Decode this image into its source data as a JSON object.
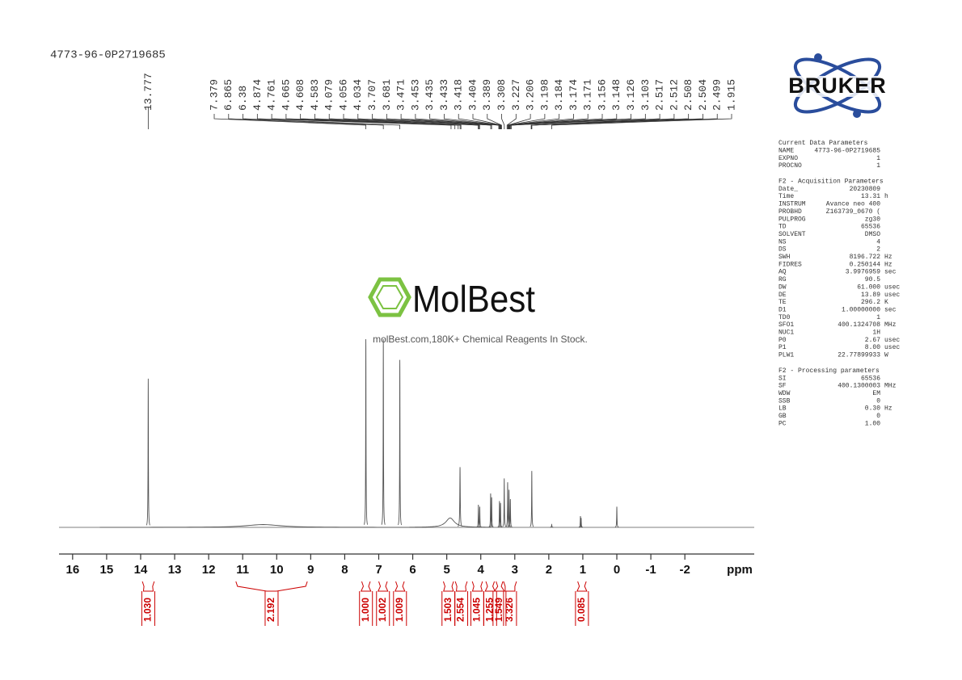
{
  "sample_id": "4773-96-0P2719685",
  "logo": "BRUKER",
  "watermark": {
    "brand": "MolBest",
    "tagline": "molBest.com,180K+ Chemical Reagents In Stock."
  },
  "chart_data": {
    "type": "nmr",
    "x_label": "ppm",
    "xlim": [
      16.4,
      -4.04
    ],
    "xticks": [
      16,
      15,
      14,
      13,
      12,
      11,
      10,
      9,
      8,
      7,
      6,
      5,
      4,
      3,
      2,
      1,
      0,
      -1,
      -2
    ],
    "line_color": "#555555",
    "peaks": {
      "x": [
        13.777,
        10.4,
        7.379,
        6.865,
        6.38,
        4.9,
        4.61,
        4.07,
        4.03,
        3.71,
        3.68,
        3.45,
        3.42,
        3.31,
        3.21,
        3.17,
        3.13,
        2.5,
        1.915,
        1.07,
        1.05,
        0.0
      ],
      "values": [
        79,
        1.5,
        100,
        100,
        89,
        5,
        32,
        12,
        11,
        18,
        16,
        14,
        13,
        26,
        24,
        20,
        15,
        30,
        1.5,
        6,
        5,
        11
      ],
      "widths": [
        0.006,
        0.6,
        0.006,
        0.006,
        0.006,
        0.15,
        0.008,
        0.006,
        0.006,
        0.006,
        0.006,
        0.006,
        0.006,
        0.006,
        0.006,
        0.006,
        0.006,
        0.006,
        0.006,
        0.006,
        0.006,
        0.006
      ]
    },
    "peak_labels": [
      13.777,
      7.379,
      6.865,
      6.38,
      4.874,
      4.761,
      4.665,
      4.608,
      4.583,
      4.079,
      4.056,
      4.034,
      3.707,
      3.681,
      3.471,
      3.453,
      3.435,
      3.433,
      3.418,
      3.404,
      3.389,
      3.308,
      3.227,
      3.206,
      3.198,
      3.184,
      3.174,
      3.171,
      3.156,
      3.148,
      3.126,
      3.103,
      2.517,
      2.512,
      2.508,
      2.504,
      2.499,
      1.915
    ],
    "integrals": {
      "color": "#cc0000",
      "from": [
        13.95,
        11.2,
        7.5,
        7.0,
        6.5,
        5.1,
        4.75,
        4.25,
        3.85,
        3.55,
        3.33,
        1.15
      ],
      "to": [
        13.6,
        9.1,
        7.25,
        6.75,
        6.25,
        4.8,
        4.4,
        3.95,
        3.6,
        3.35,
        2.95,
        0.9
      ],
      "values": [
        1.03,
        2.192,
        1.0,
        1.002,
        1.009,
        1.503,
        2.554,
        1.045,
        1.255,
        1.549,
        3.326,
        0.085
      ],
      "value_labels": [
        "1.030",
        "2.192",
        "1.000",
        "1.002",
        "1.009",
        "1.503",
        "2.554",
        "1.045",
        "1.255",
        "1.549",
        "3.326",
        "0.085"
      ]
    }
  },
  "parameters": [
    {
      "title": "Current Data Parameters",
      "rows": [
        [
          "NAME",
          "4773-96-0P2719685",
          ""
        ],
        [
          "EXPNO",
          "1",
          ""
        ],
        [
          "PROCNO",
          "1",
          ""
        ]
      ]
    },
    {
      "title": "F2 - Acquisition Parameters",
      "rows": [
        [
          "Date_",
          "20230809",
          ""
        ],
        [
          "Time",
          "13.31",
          "h"
        ],
        [
          "INSTRUM",
          "Avance neo 400",
          ""
        ],
        [
          "PROBHD",
          "Z163739_0670 (",
          ""
        ],
        [
          "PULPROG",
          "zg30",
          ""
        ],
        [
          "TD",
          "65536",
          ""
        ],
        [
          "SOLVENT",
          "DMSO",
          ""
        ],
        [
          "NS",
          "4",
          ""
        ],
        [
          "DS",
          "2",
          ""
        ],
        [
          "SWH",
          "8196.722",
          "Hz"
        ],
        [
          "FIDRES",
          "0.250144",
          "Hz"
        ],
        [
          "AQ",
          "3.9976959",
          "sec"
        ],
        [
          "RG",
          "90.5",
          ""
        ],
        [
          "DW",
          "61.000",
          "usec"
        ],
        [
          "DE",
          "13.89",
          "usec"
        ],
        [
          "TE",
          "296.2",
          "K"
        ],
        [
          "D1",
          "1.00000000",
          "sec"
        ],
        [
          "TD0",
          "1",
          ""
        ],
        [
          "SFO1",
          "400.1324708",
          "MHz"
        ],
        [
          "NUC1",
          "1H",
          ""
        ],
        [
          "P0",
          "2.67",
          "usec"
        ],
        [
          "P1",
          "8.00",
          "usec"
        ],
        [
          "PLW1",
          "22.77899933",
          "W"
        ]
      ]
    },
    {
      "title": "F2 - Processing parameters",
      "rows": [
        [
          "SI",
          "65536",
          ""
        ],
        [
          "SF",
          "400.1300003",
          "MHz"
        ],
        [
          "WDW",
          "EM",
          ""
        ],
        [
          "SSB",
          "0",
          ""
        ],
        [
          "LB",
          "0.30",
          "Hz"
        ],
        [
          "GB",
          "0",
          ""
        ],
        [
          "PC",
          "1.00",
          ""
        ]
      ]
    }
  ]
}
